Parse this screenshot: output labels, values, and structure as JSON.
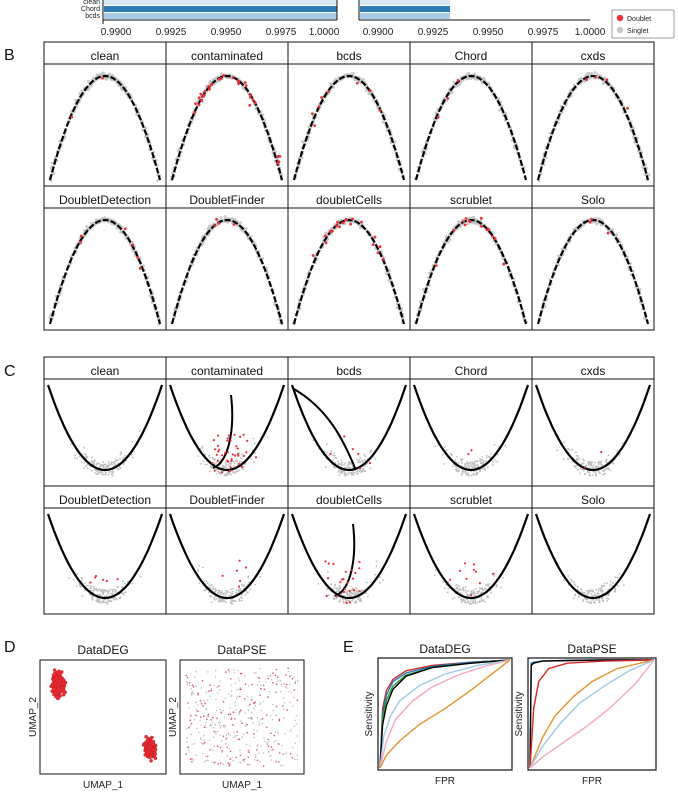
{
  "figure": {
    "panel_labels": [
      "B",
      "C",
      "D",
      "E"
    ],
    "top_fragment": {
      "y_labels": [
        "clean",
        "Chord",
        "bcds"
      ],
      "left_ticks": [
        "0.9900",
        "0.9925",
        "0.9950",
        "0.9975",
        "1.0000"
      ],
      "right_ticks": [
        "0.9900",
        "0.9925",
        "0.9950",
        "0.9975",
        "1.0000"
      ],
      "legend": [
        {
          "name": "Doublet",
          "color": "#e8313a"
        },
        {
          "name": "Singlet",
          "color": "#c8c8c8"
        }
      ],
      "bar_colors": [
        "#d7e7f3",
        "#2e7ab5",
        "#a9cde6"
      ]
    },
    "panel_b": {
      "titles": [
        "clean",
        "contaminated",
        "bcds",
        "Chord",
        "cxds",
        "DoubletDetection",
        "DoubletFinder",
        "doubletCells",
        "scrublet",
        "Solo"
      ]
    },
    "panel_c": {
      "titles": [
        "clean",
        "contaminated",
        "bcds",
        "Chord",
        "cxds",
        "DoubletDetection",
        "DoubletFinder",
        "doubletCells",
        "scrublet",
        "Solo"
      ]
    },
    "panel_d": {
      "titles": [
        "DataDEG",
        "DataPSE"
      ],
      "xlabel": "UMAP_1",
      "ylabel": "UMAP_2"
    },
    "panel_e": {
      "titles": [
        "DataDEG",
        "DataPSE"
      ],
      "xlabel": "FPR",
      "ylabel": "Sensitivity"
    },
    "colors": {
      "doublet": "#e8313a",
      "singlet": "#c8c8c8",
      "trajectory": "#000000"
    }
  },
  "chart_data": [
    {
      "type": "line",
      "title": "DataDEG",
      "xlabel": "FPR",
      "ylabel": "Sensitivity",
      "xlim": [
        0,
        1
      ],
      "ylim": [
        0,
        1
      ],
      "series": [
        {
          "color": "#d62728",
          "x": [
            0,
            0.02,
            0.05,
            0.1,
            0.2,
            0.4,
            0.7,
            1
          ],
          "y": [
            0,
            0.55,
            0.72,
            0.82,
            0.9,
            0.95,
            0.98,
            1
          ]
        },
        {
          "color": "#1f77b4",
          "x": [
            0,
            0.02,
            0.05,
            0.1,
            0.2,
            0.4,
            0.7,
            1
          ],
          "y": [
            0,
            0.5,
            0.68,
            0.8,
            0.88,
            0.94,
            0.98,
            1
          ]
        },
        {
          "color": "#2ca02c",
          "x": [
            0,
            0.02,
            0.05,
            0.1,
            0.2,
            0.4,
            0.7,
            1
          ],
          "y": [
            0,
            0.45,
            0.63,
            0.76,
            0.86,
            0.93,
            0.97,
            1
          ]
        },
        {
          "color": "#000000",
          "x": [
            0,
            0.02,
            0.05,
            0.1,
            0.2,
            0.4,
            0.7,
            1
          ],
          "y": [
            0,
            0.4,
            0.58,
            0.73,
            0.85,
            0.93,
            0.97,
            1
          ]
        },
        {
          "color": "#9ecae1",
          "x": [
            0,
            0.03,
            0.08,
            0.15,
            0.3,
            0.5,
            0.75,
            1
          ],
          "y": [
            0,
            0.3,
            0.48,
            0.62,
            0.76,
            0.87,
            0.95,
            1
          ]
        },
        {
          "color": "#f4a6c2",
          "x": [
            0,
            0.05,
            0.12,
            0.25,
            0.4,
            0.6,
            0.8,
            1
          ],
          "y": [
            0,
            0.25,
            0.45,
            0.62,
            0.75,
            0.86,
            0.94,
            1
          ]
        },
        {
          "color": "#e6922e",
          "x": [
            0,
            0.05,
            0.15,
            0.3,
            0.5,
            0.7,
            0.85,
            1
          ],
          "y": [
            0,
            0.12,
            0.25,
            0.4,
            0.55,
            0.72,
            0.86,
            1
          ]
        }
      ]
    },
    {
      "type": "line",
      "title": "DataPSE",
      "xlabel": "FPR",
      "ylabel": "Sensitivity",
      "xlim": [
        0,
        1
      ],
      "ylim": [
        0,
        1
      ],
      "series": [
        {
          "color": "#1f77b4",
          "x": [
            0,
            0.01,
            0.03,
            0.1,
            0.3,
            0.6,
            1
          ],
          "y": [
            0,
            0.97,
            0.98,
            0.99,
            0.995,
            1,
            1
          ]
        },
        {
          "color": "#000000",
          "x": [
            0,
            0.01,
            0.03,
            0.1,
            0.3,
            0.6,
            1
          ],
          "y": [
            0,
            0.95,
            0.97,
            0.99,
            0.995,
            1,
            1
          ]
        },
        {
          "color": "#d62728",
          "x": [
            0,
            0.03,
            0.07,
            0.15,
            0.3,
            0.6,
            1
          ],
          "y": [
            0,
            0.55,
            0.8,
            0.92,
            0.97,
            0.99,
            1
          ]
        },
        {
          "color": "#e6922e",
          "x": [
            0,
            0.1,
            0.2,
            0.35,
            0.5,
            0.7,
            1
          ],
          "y": [
            0,
            0.28,
            0.48,
            0.66,
            0.8,
            0.92,
            1
          ]
        },
        {
          "color": "#9ecae1",
          "x": [
            0,
            0.1,
            0.25,
            0.4,
            0.6,
            0.8,
            1
          ],
          "y": [
            0,
            0.2,
            0.42,
            0.6,
            0.76,
            0.9,
            1
          ]
        },
        {
          "color": "#f4a6c2",
          "x": [
            0,
            0.1,
            0.25,
            0.45,
            0.65,
            0.85,
            1
          ],
          "y": [
            0,
            0.1,
            0.22,
            0.38,
            0.56,
            0.78,
            1
          ]
        }
      ]
    }
  ]
}
